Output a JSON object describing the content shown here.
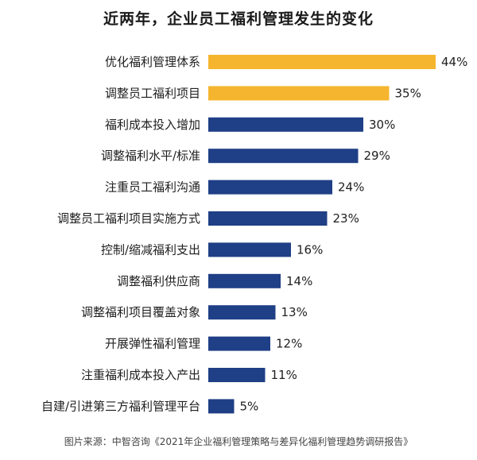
{
  "chart_data": {
    "type": "bar",
    "orientation": "horizontal",
    "title": "近两年，企业员工福利管理发生的变化",
    "categories": [
      "优化福利管理体系",
      "调整员工福利项目",
      "福利成本投入增加",
      "调整福利水平/标准",
      "注重员工福利沟通",
      "调整员工福利项目实施方式",
      "控制/缩减福利支出",
      "调整福利供应商",
      "调整福利项目覆盖对象",
      "开展弹性福利管理",
      "注重福利成本投入产出",
      "自建/引进第三方福利管理平台"
    ],
    "values": [
      44,
      35,
      30,
      29,
      24,
      23,
      16,
      14,
      13,
      12,
      11,
      5
    ],
    "value_labels": [
      "44%",
      "35%",
      "30%",
      "29%",
      "24%",
      "23%",
      "16%",
      "14%",
      "13%",
      "12%",
      "11%",
      "5%"
    ],
    "highlight_count": 2,
    "xlim": [
      0,
      44
    ],
    "grid": false,
    "legend": "none",
    "xlabel": "",
    "ylabel": ""
  },
  "colors": {
    "highlight": "#F5B52E",
    "default": "#1F3F86"
  },
  "source": "图片来源：中智咨询《2021年企业福利管理策略与差异化福利管理趋势调研报告》"
}
